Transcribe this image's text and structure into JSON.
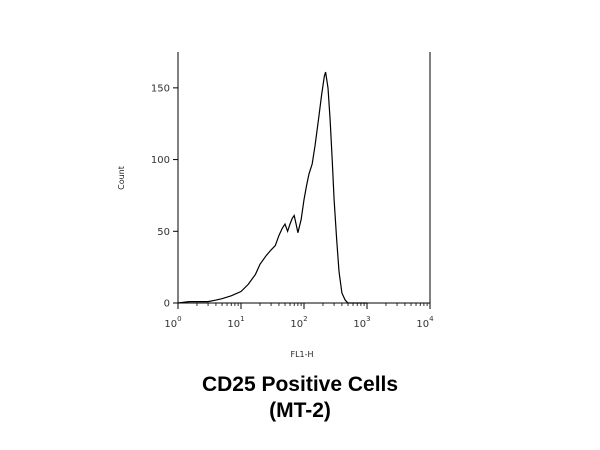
{
  "chart_data": {
    "type": "area",
    "title": "",
    "xlabel": "FL1-H",
    "ylabel": "Count",
    "x_scale": "log",
    "xlim": [
      1,
      10000
    ],
    "ylim": [
      0,
      175
    ],
    "x_ticks": [
      {
        "base": "10",
        "exp": "0"
      },
      {
        "base": "10",
        "exp": "1"
      },
      {
        "base": "10",
        "exp": "2"
      },
      {
        "base": "10",
        "exp": "3"
      },
      {
        "base": "10",
        "exp": "4"
      }
    ],
    "y_ticks": [
      "0",
      "50",
      "100",
      "150"
    ],
    "grid": false,
    "series": [
      {
        "x": [
          1,
          1.5,
          2,
          3,
          4,
          5,
          7,
          10,
          13,
          17,
          20,
          25,
          30,
          35,
          40,
          45,
          50,
          55,
          60,
          65,
          70,
          75,
          80,
          90,
          100,
          110,
          120,
          135,
          150,
          170,
          190,
          210,
          220,
          240,
          260,
          280,
          300,
          330,
          360,
          400,
          450,
          500,
          560,
          630,
          1000
        ],
        "y": [
          0,
          1,
          1,
          1,
          2,
          3,
          5,
          8,
          13,
          20,
          27,
          33,
          37,
          40,
          47,
          52,
          55,
          50,
          55,
          59,
          61,
          55,
          49,
          58,
          72,
          82,
          90,
          97,
          110,
          128,
          145,
          158,
          161,
          150,
          128,
          100,
          72,
          44,
          22,
          7,
          2,
          0,
          0,
          0,
          0
        ]
      }
    ]
  },
  "caption": {
    "line1": "CD25 Positive Cells",
    "line2": "(MT-2)"
  }
}
